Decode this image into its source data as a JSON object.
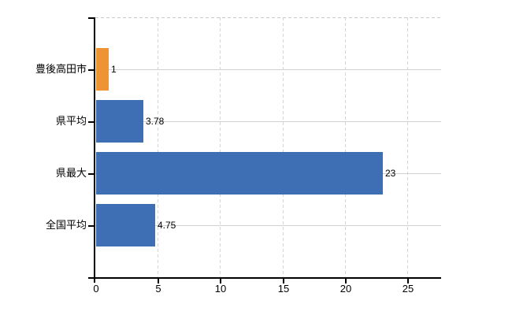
{
  "chart_data": {
    "type": "bar",
    "orientation": "horizontal",
    "title": "",
    "xlabel": "",
    "ylabel": "",
    "categories": [
      "豊後高田市",
      "県平均",
      "県最大",
      "全国平均"
    ],
    "values": [
      1,
      3.78,
      23,
      4.75
    ],
    "value_labels": [
      "1",
      "3.78",
      "23",
      "4.75"
    ],
    "series": [
      {
        "name": "",
        "values": [
          1,
          3.78,
          23,
          4.75
        ]
      }
    ],
    "bar_colors": [
      "#ee9434",
      "#3e6eb4",
      "#3e6eb4",
      "#3e6eb4"
    ],
    "xlim": [
      0,
      27.5
    ],
    "xticks": [
      0,
      5,
      10,
      15,
      20,
      25
    ],
    "xtick_labels": [
      "0",
      "5",
      "10",
      "15",
      "20",
      "25"
    ],
    "grid": true,
    "legend": false
  },
  "colors": {
    "background": "#ffffff",
    "axis": "#000000",
    "text": "#000000",
    "h_gridline": "#cfd3cf",
    "v_gridline": "#d4d4d4",
    "top_border": "#c9c9c9",
    "bar_orange": "#ee9434",
    "bar_blue": "#3e6eb4"
  }
}
